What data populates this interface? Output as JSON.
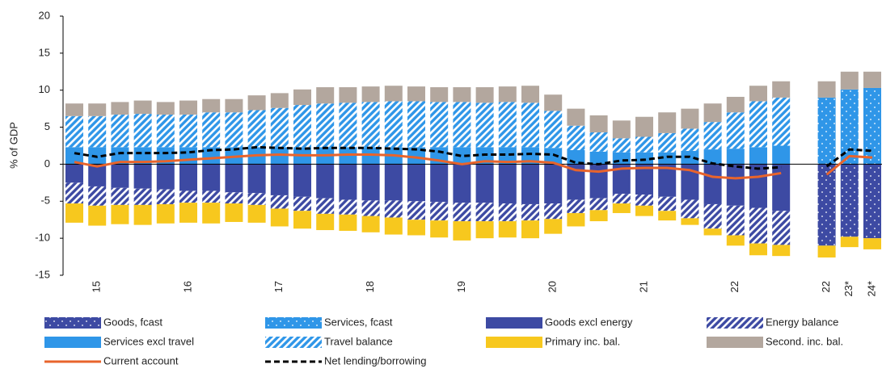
{
  "chart_data": {
    "type": "bar",
    "stacked": true,
    "y_label": "% of GDP",
    "ylim": [
      -15,
      20
    ],
    "yticks": [
      -15,
      -10,
      -5,
      0,
      5,
      10,
      15,
      20
    ],
    "categories": [
      null,
      "15",
      null,
      null,
      null,
      "16",
      null,
      null,
      null,
      "17",
      null,
      null,
      null,
      "18",
      null,
      null,
      null,
      "19",
      null,
      null,
      null,
      "20",
      null,
      null,
      null,
      "21",
      null,
      null,
      null,
      "22",
      null,
      null,
      null,
      "22",
      "23*",
      "24*"
    ],
    "series": [
      {
        "name": "Goods, fcast",
        "color": "#3d4aa3",
        "pattern": "dots",
        "values": [
          null,
          null,
          null,
          null,
          null,
          null,
          null,
          null,
          null,
          null,
          null,
          null,
          null,
          null,
          null,
          null,
          null,
          null,
          null,
          null,
          null,
          null,
          null,
          null,
          null,
          null,
          null,
          null,
          null,
          null,
          null,
          null,
          null,
          -11.0,
          -9.8,
          -10.0
        ]
      },
      {
        "name": "Services, fcast",
        "color": "#2f96e8",
        "pattern": "dots",
        "values": [
          null,
          null,
          null,
          null,
          null,
          null,
          null,
          null,
          null,
          null,
          null,
          null,
          null,
          null,
          null,
          null,
          null,
          null,
          null,
          null,
          null,
          null,
          null,
          null,
          null,
          null,
          null,
          null,
          null,
          null,
          null,
          null,
          null,
          9.0,
          10.1,
          10.3
        ]
      },
      {
        "name": "Goods excl energy",
        "color": "#3d4aa3",
        "pattern": "solid",
        "values": [
          -2.5,
          -3.0,
          -3.2,
          -3.3,
          -3.4,
          -3.6,
          -3.6,
          -3.8,
          -3.9,
          -4.2,
          -4.4,
          -4.6,
          -4.8,
          -4.9,
          -4.9,
          -5.0,
          -5.1,
          -5.2,
          -5.2,
          -5.3,
          -5.4,
          -5.3,
          -4.8,
          -4.6,
          -4.0,
          -4.1,
          -4.4,
          -4.8,
          -5.4,
          -5.6,
          -5.9,
          -6.3,
          null,
          null,
          null,
          null
        ]
      },
      {
        "name": "Energy balance",
        "color": "#3d4aa3",
        "pattern": "stripes",
        "values": [
          -2.8,
          -2.6,
          -2.3,
          -2.2,
          -2.0,
          -1.6,
          -1.6,
          -1.5,
          -1.6,
          -1.8,
          -1.9,
          -2.1,
          -2.0,
          -2.1,
          -2.3,
          -2.5,
          -2.5,
          -2.5,
          -2.5,
          -2.4,
          -2.2,
          -2.1,
          -1.8,
          -1.6,
          -1.3,
          -1.5,
          -1.9,
          -2.5,
          -3.3,
          -4.0,
          -4.8,
          -4.6,
          null,
          null,
          null,
          null
        ]
      },
      {
        "name": "Services excl travel",
        "color": "#2f96e8",
        "pattern": "solid",
        "values": [
          2.3,
          2.3,
          2.3,
          2.3,
          2.3,
          2.3,
          2.3,
          2.3,
          2.3,
          2.3,
          2.3,
          2.3,
          2.3,
          2.3,
          2.3,
          2.3,
          2.3,
          2.3,
          2.3,
          2.3,
          2.3,
          2.2,
          1.9,
          1.7,
          1.6,
          1.6,
          1.6,
          1.8,
          2.0,
          2.1,
          2.3,
          2.5,
          null,
          null,
          null,
          null
        ]
      },
      {
        "name": "Travel balance",
        "color": "#2f96e8",
        "pattern": "stripes",
        "values": [
          4.2,
          4.2,
          4.4,
          4.5,
          4.4,
          4.4,
          4.7,
          4.7,
          5.0,
          5.3,
          5.7,
          5.9,
          6.0,
          6.1,
          6.2,
          6.2,
          6.1,
          6.1,
          6.0,
          6.1,
          6.0,
          5.0,
          3.3,
          2.6,
          1.9,
          2.1,
          2.6,
          3.0,
          3.7,
          4.9,
          6.2,
          6.5,
          null,
          null,
          null,
          null
        ]
      },
      {
        "name": "Primary inc. bal.",
        "color": "#f7c81e",
        "pattern": "solid",
        "values": [
          -2.6,
          -2.7,
          -2.6,
          -2.7,
          -2.6,
          -2.7,
          -2.8,
          -2.5,
          -2.4,
          -2.4,
          -2.4,
          -2.2,
          -2.2,
          -2.2,
          -2.3,
          -2.1,
          -2.3,
          -2.6,
          -2.3,
          -2.2,
          -2.4,
          -2.0,
          -1.8,
          -1.5,
          -1.3,
          -1.4,
          -1.3,
          -0.9,
          -0.9,
          -1.4,
          -1.6,
          -1.5,
          null,
          -1.6,
          -1.4,
          -1.5
        ]
      },
      {
        "name": "Second. inc. bal.",
        "color": "#b3a79e",
        "pattern": "solid",
        "values": [
          1.7,
          1.7,
          1.7,
          1.8,
          1.7,
          1.9,
          1.8,
          1.8,
          2.0,
          2.0,
          2.1,
          2.2,
          2.1,
          2.1,
          2.1,
          2.0,
          2.0,
          2.0,
          2.1,
          2.1,
          2.3,
          2.2,
          2.3,
          2.3,
          2.4,
          2.7,
          2.8,
          2.7,
          2.5,
          2.1,
          2.1,
          2.2,
          null,
          2.2,
          2.4,
          2.2
        ]
      },
      {
        "name": "Current account",
        "type": "line",
        "color": "#e8642c",
        "dashed": false,
        "values": [
          0.3,
          -0.3,
          0.3,
          0.3,
          0.4,
          0.6,
          0.8,
          1.0,
          1.2,
          1.3,
          1.2,
          1.2,
          1.3,
          1.3,
          1.2,
          0.9,
          0.5,
          0.0,
          0.4,
          0.3,
          0.4,
          0.2,
          -0.8,
          -1.0,
          -0.6,
          -0.5,
          -0.5,
          -0.8,
          -1.7,
          -1.9,
          -1.7,
          -1.2,
          null,
          -1.4,
          1.1,
          0.9
        ]
      },
      {
        "name": "Net lending/borrowing",
        "type": "line",
        "color": "#000000",
        "dashed": true,
        "values": [
          1.5,
          1.0,
          1.5,
          1.5,
          1.5,
          1.6,
          1.9,
          2.0,
          2.3,
          2.2,
          2.1,
          2.2,
          2.2,
          2.2,
          2.1,
          2.0,
          1.7,
          1.1,
          1.3,
          1.3,
          1.4,
          1.3,
          0.2,
          0.0,
          0.5,
          0.6,
          1.0,
          1.0,
          0.1,
          -0.3,
          -0.6,
          -0.4,
          null,
          -0.3,
          2.0,
          1.8
        ]
      }
    ]
  }
}
